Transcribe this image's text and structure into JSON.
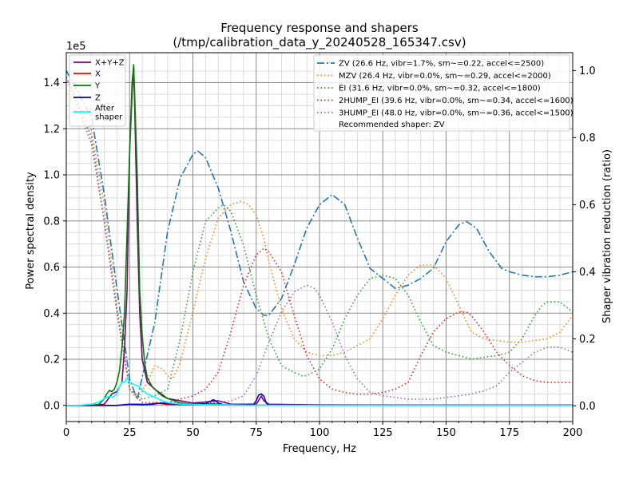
{
  "chart_data": {
    "type": "line",
    "title": "Frequency response and shapers",
    "subtitle": "(/tmp/calibration_data_y_20240528_165347.csv)",
    "xlabel": "Frequency, Hz",
    "ylabel": "Power spectral density",
    "y2label": "Shaper vibration reduction (ratio)",
    "y_offset_label": "1e5",
    "xlim": [
      0,
      200
    ],
    "ylim": [
      -0.07,
      1.53
    ],
    "y2lim": [
      -0.0467,
      1.0533
    ],
    "grid": true,
    "x_ticks": [
      "0",
      "25",
      "50",
      "75",
      "100",
      "125",
      "150",
      "175",
      "200"
    ],
    "x_tick_values": [
      0,
      25,
      50,
      75,
      100,
      125,
      150,
      175,
      200
    ],
    "y_ticks": [
      "0.0",
      "0.2",
      "0.4",
      "0.6",
      "0.8",
      "1.0",
      "1.2",
      "1.4"
    ],
    "y_tick_values": [
      0,
      0.2,
      0.4,
      0.6,
      0.8,
      1.0,
      1.2,
      1.4
    ],
    "y2_ticks": [
      "0.0",
      "0.2",
      "0.4",
      "0.6",
      "0.8",
      "1.0"
    ],
    "y2_tick_values": [
      0,
      0.2,
      0.4,
      0.6,
      0.8,
      1.0
    ],
    "legend_left": {
      "placement": "top-left",
      "entries": [
        "X+Y+Z",
        "X",
        "Y",
        "Z",
        "After shaper"
      ]
    },
    "legend_right": {
      "placement": "top-right",
      "entries": [
        "ZV (26.6 Hz, vibr=1.7%, sm~=0.22, accel<=2500)",
        "MZV (26.4 Hz, vibr=0.0%, sm~=0.29, accel<=2000)",
        "EI (31.6 Hz, vibr=0.0%, sm~=0.32, accel<=1800)",
        "2HUMP_EI (39.6 Hz, vibr=0.0%, sm~=0.34, accel<=1600)",
        "3HUMP_EI (48.0 Hz, vibr=0.0%, sm~=0.36, accel<=1500)"
      ],
      "note": "Recommended shaper: ZV"
    },
    "psd_series": [
      {
        "name": "X+Y+Z",
        "color": "#800080",
        "axis": "left",
        "x": [
          0,
          10,
          15,
          18,
          20,
          22,
          23,
          24,
          25,
          26,
          26.6,
          27,
          28,
          29,
          30,
          32,
          35,
          40,
          50,
          60,
          65,
          75,
          77,
          78,
          80,
          100,
          150,
          200
        ],
        "y": [
          0,
          0,
          0.005,
          0.05,
          0.06,
          0.1,
          0.25,
          0.5,
          1.1,
          1.4,
          1.47,
          1.3,
          0.8,
          0.4,
          0.2,
          0.1,
          0.07,
          0.03,
          0.01,
          0.02,
          0.005,
          0.005,
          0.04,
          0.02,
          0.005,
          0.002,
          0.001,
          0.001
        ]
      },
      {
        "name": "X",
        "color": "#ff0000",
        "axis": "left",
        "x": [
          0,
          20,
          25,
          28,
          32,
          36,
          40,
          45,
          50,
          58,
          60,
          63,
          70,
          100,
          150,
          200
        ],
        "y": [
          0,
          0,
          0.005,
          0.005,
          0.005,
          0.01,
          0.004,
          0.004,
          0.003,
          0.008,
          0.005,
          0.002,
          0.001,
          0,
          0,
          0
        ]
      },
      {
        "name": "Y",
        "color": "#008000",
        "axis": "left",
        "x": [
          0,
          10,
          13,
          15,
          16,
          17,
          18,
          19,
          20,
          21,
          22,
          23,
          24,
          25,
          26,
          26.6,
          27,
          28,
          29,
          30,
          31,
          32,
          34,
          36,
          38,
          40,
          45,
          50,
          60,
          70,
          100,
          150,
          200
        ],
        "y": [
          0,
          0.0,
          0.005,
          0.03,
          0.05,
          0.065,
          0.06,
          0.07,
          0.1,
          0.15,
          0.25,
          0.4,
          0.75,
          1.1,
          1.35,
          1.48,
          1.35,
          1.0,
          0.5,
          0.3,
          0.18,
          0.12,
          0.08,
          0.06,
          0.04,
          0.03,
          0.01,
          0.005,
          0.002,
          0.001,
          0.001,
          0.001,
          0.001
        ]
      },
      {
        "name": "Z",
        "color": "#0000cc",
        "axis": "left",
        "x": [
          0,
          20,
          25,
          30,
          34,
          36,
          38,
          40,
          45,
          50,
          55,
          57,
          58,
          59,
          60,
          62,
          65,
          70,
          74,
          75,
          76,
          77,
          78,
          79,
          80,
          90,
          100,
          150,
          200
        ],
        "y": [
          0,
          0,
          0.005,
          0.003,
          0.005,
          0.008,
          0.01,
          0.008,
          0.005,
          0.005,
          0.008,
          0.018,
          0.025,
          0.02,
          0.01,
          0.003,
          0.002,
          0.002,
          0.005,
          0.02,
          0.045,
          0.05,
          0.04,
          0.01,
          0.002,
          0.001,
          0.001,
          0.001,
          0.001
        ]
      },
      {
        "name": "After shaper",
        "color": "#00ffff",
        "axis": "left",
        "x": [
          0,
          5,
          10,
          13,
          15,
          17,
          18,
          19,
          20,
          21,
          22,
          23,
          24,
          25,
          26,
          27,
          28,
          29,
          30,
          32,
          34,
          36,
          38,
          40,
          45,
          50,
          55,
          60,
          65,
          70,
          100,
          150,
          200
        ],
        "y": [
          0,
          0,
          0.005,
          0.015,
          0.03,
          0.04,
          0.035,
          0.04,
          0.05,
          0.08,
          0.1,
          0.1,
          0.12,
          0.1,
          0.095,
          0.09,
          0.085,
          0.08,
          0.065,
          0.05,
          0.04,
          0.03,
          0.02,
          0.012,
          0.006,
          0.004,
          0.003,
          0.003,
          0.002,
          0.001,
          0,
          0,
          0
        ]
      }
    ],
    "shaper_series": [
      {
        "name": "ZV (26.6 Hz, vibr=1.7%, sm~=0.22, accel<=2500)",
        "color": "#1f77b4",
        "dash": "dashdot",
        "axis": "right",
        "x": [
          0,
          10,
          15,
          20,
          25,
          28,
          35,
          40,
          45,
          50,
          52,
          55,
          60,
          65,
          70,
          75,
          78,
          80,
          85,
          90,
          95,
          100,
          105,
          110,
          115,
          120,
          125,
          130,
          135,
          140,
          145,
          150,
          155,
          158,
          162,
          167,
          172,
          175,
          180,
          185,
          190,
          195,
          200
        ],
        "y": [
          1.0,
          0.86,
          0.63,
          0.35,
          0.08,
          0.02,
          0.25,
          0.52,
          0.68,
          0.75,
          0.76,
          0.74,
          0.65,
          0.52,
          0.37,
          0.29,
          0.27,
          0.27,
          0.32,
          0.42,
          0.53,
          0.6,
          0.63,
          0.6,
          0.5,
          0.41,
          0.38,
          0.35,
          0.36,
          0.38,
          0.41,
          0.49,
          0.54,
          0.55,
          0.53,
          0.46,
          0.41,
          0.4,
          0.39,
          0.385,
          0.385,
          0.39,
          0.4
        ]
      },
      {
        "name": "MZV (26.4 Hz, vibr=0.0%, sm~=0.29, accel<=2000)",
        "color": "#ff7f0e",
        "dash": "dotted",
        "axis": "right",
        "x": [
          0,
          10,
          15,
          20,
          25,
          28,
          32,
          35,
          38,
          40,
          42,
          45,
          50,
          55,
          60,
          65,
          69,
          72,
          75,
          78,
          80,
          85,
          90,
          95,
          100,
          105,
          110,
          115,
          120,
          125,
          130,
          135,
          140,
          145,
          150,
          155,
          160,
          165,
          170,
          175,
          180,
          185,
          190,
          195,
          200
        ],
        "y": [
          0.98,
          0.82,
          0.6,
          0.3,
          0.05,
          0.02,
          0.07,
          0.12,
          0.11,
          0.09,
          0.08,
          0.13,
          0.28,
          0.44,
          0.56,
          0.6,
          0.61,
          0.6,
          0.57,
          0.5,
          0.43,
          0.29,
          0.2,
          0.16,
          0.15,
          0.15,
          0.16,
          0.18,
          0.2,
          0.26,
          0.33,
          0.39,
          0.42,
          0.42,
          0.38,
          0.3,
          0.22,
          0.2,
          0.195,
          0.19,
          0.19,
          0.195,
          0.2,
          0.22,
          0.27
        ]
      },
      {
        "name": "EI (31.6 Hz, vibr=0.0%, sm~=0.32, accel<=1800)",
        "color": "#2ca02c",
        "dash": "dotted",
        "axis": "right",
        "x": [
          0,
          10,
          15,
          20,
          25,
          30,
          35,
          40,
          45,
          50,
          55,
          60,
          62,
          65,
          70,
          75,
          80,
          85,
          90,
          93,
          95,
          100,
          105,
          110,
          115,
          120,
          125,
          130,
          135,
          140,
          145,
          150,
          155,
          160,
          165,
          170,
          175,
          180,
          185,
          188,
          190,
          195,
          200
        ],
        "y": [
          0.98,
          0.78,
          0.55,
          0.28,
          0.05,
          0.02,
          0.03,
          0.05,
          0.2,
          0.4,
          0.55,
          0.59,
          0.6,
          0.58,
          0.48,
          0.33,
          0.2,
          0.12,
          0.1,
          0.09,
          0.09,
          0.11,
          0.17,
          0.26,
          0.33,
          0.38,
          0.39,
          0.38,
          0.33,
          0.25,
          0.18,
          0.16,
          0.15,
          0.14,
          0.145,
          0.15,
          0.16,
          0.2,
          0.27,
          0.3,
          0.31,
          0.31,
          0.28
        ]
      },
      {
        "name": "2HUMP_EI (39.6 Hz, vibr=0.0%, sm~=0.34, accel<=1600)",
        "color": "#d62728",
        "dash": "dotted",
        "axis": "right",
        "x": [
          0,
          10,
          15,
          20,
          25,
          30,
          35,
          40,
          45,
          50,
          55,
          60,
          65,
          70,
          75,
          78,
          80,
          85,
          90,
          95,
          100,
          105,
          110,
          115,
          120,
          125,
          130,
          135,
          140,
          145,
          150,
          155,
          158,
          160,
          165,
          170,
          175,
          180,
          185,
          190,
          195,
          200
        ],
        "y": [
          0.98,
          0.8,
          0.55,
          0.28,
          0.05,
          0.01,
          0.01,
          0.01,
          0.02,
          0.03,
          0.05,
          0.1,
          0.22,
          0.36,
          0.45,
          0.47,
          0.46,
          0.4,
          0.27,
          0.15,
          0.08,
          0.05,
          0.04,
          0.035,
          0.035,
          0.04,
          0.05,
          0.07,
          0.15,
          0.22,
          0.26,
          0.28,
          0.28,
          0.27,
          0.22,
          0.16,
          0.12,
          0.09,
          0.075,
          0.07,
          0.07,
          0.07
        ]
      },
      {
        "name": "3HUMP_EI (48.0 Hz, vibr=0.0%, sm~=0.36, accel<=1500)",
        "color": "#9467bd",
        "dash": "dotted",
        "axis": "right",
        "x": [
          0,
          10,
          15,
          20,
          25,
          30,
          35,
          40,
          45,
          50,
          55,
          60,
          65,
          70,
          75,
          80,
          85,
          90,
          95,
          98,
          100,
          105,
          110,
          115,
          120,
          125,
          130,
          135,
          140,
          145,
          150,
          155,
          160,
          165,
          170,
          175,
          180,
          185,
          190,
          195,
          200
        ],
        "y": [
          0.98,
          0.8,
          0.55,
          0.28,
          0.05,
          0.01,
          0.01,
          0.01,
          0.01,
          0.01,
          0.01,
          0.01,
          0.015,
          0.03,
          0.09,
          0.19,
          0.28,
          0.34,
          0.36,
          0.35,
          0.33,
          0.25,
          0.15,
          0.08,
          0.04,
          0.03,
          0.025,
          0.02,
          0.02,
          0.02,
          0.025,
          0.03,
          0.035,
          0.045,
          0.06,
          0.1,
          0.13,
          0.16,
          0.175,
          0.175,
          0.16
        ]
      }
    ]
  }
}
